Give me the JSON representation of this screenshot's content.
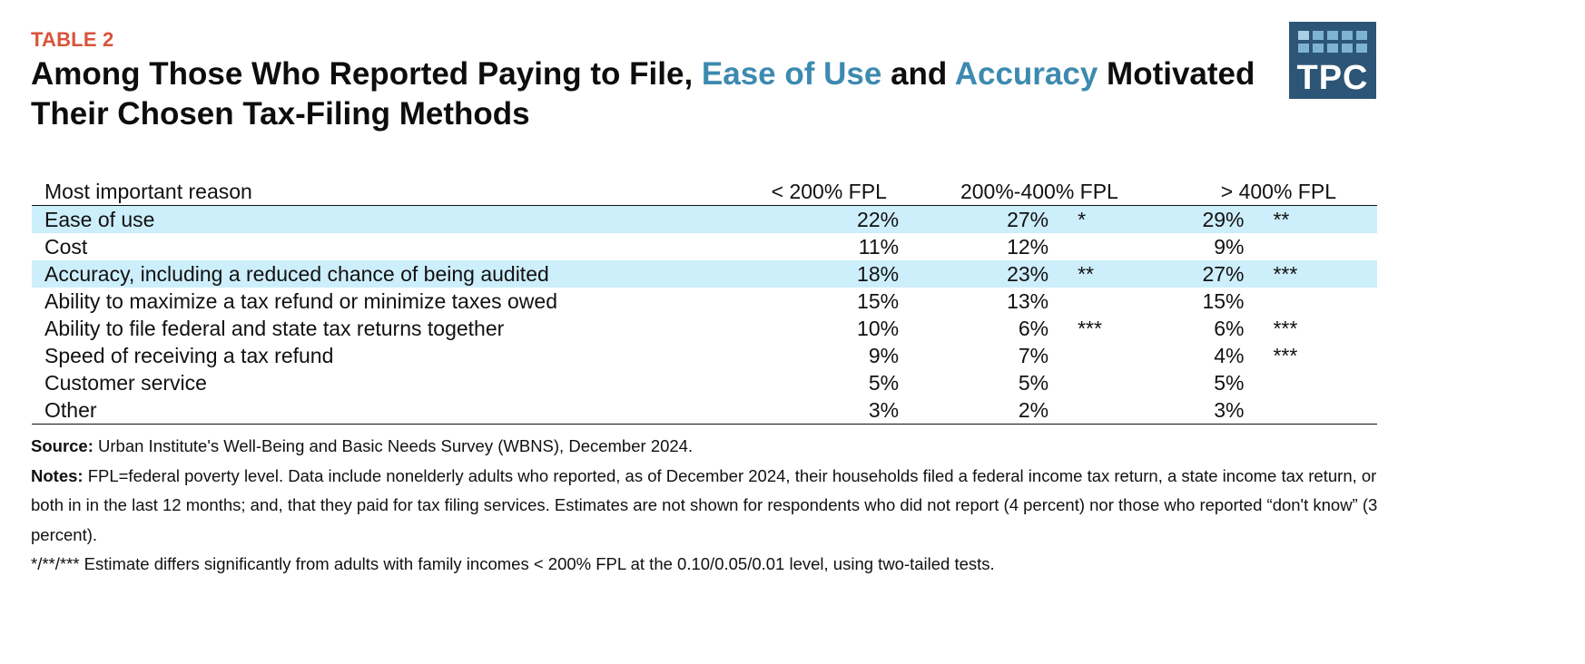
{
  "label": "TABLE 2",
  "title": {
    "part1": "Among Those Who Reported Paying to File, ",
    "hl1": "Ease of Use",
    "part2": " and ",
    "hl2": "Accuracy",
    "part3": " Motivated Their Chosen Tax-Filing Methods",
    "highlight_color": "#3d8ab0"
  },
  "logo": {
    "text": "TPC",
    "bg_color": "#2d5577"
  },
  "table": {
    "headers": [
      "Most important reason",
      "< 200% FPL",
      "200%-400% FPL",
      "> 400% FPL"
    ],
    "highlight_color": "#cdeefb",
    "rows": [
      {
        "reason": "Ease of use",
        "fpl_lt200": "22%",
        "fpl_200_400": "27%",
        "sig_200_400": "*",
        "fpl_gt400": "29%",
        "sig_gt400": "**",
        "highlight": true
      },
      {
        "reason": "Cost",
        "fpl_lt200": "11%",
        "fpl_200_400": "12%",
        "sig_200_400": "",
        "fpl_gt400": "9%",
        "sig_gt400": "",
        "highlight": false
      },
      {
        "reason": "Accuracy, including a reduced chance of being audited",
        "fpl_lt200": "18%",
        "fpl_200_400": "23%",
        "sig_200_400": "**",
        "fpl_gt400": "27%",
        "sig_gt400": "***",
        "highlight": true
      },
      {
        "reason": "Ability to maximize a tax refund or minimize taxes owed",
        "fpl_lt200": "15%",
        "fpl_200_400": "13%",
        "sig_200_400": "",
        "fpl_gt400": "15%",
        "sig_gt400": "",
        "highlight": false
      },
      {
        "reason": "Ability to file federal and state tax returns together",
        "fpl_lt200": "10%",
        "fpl_200_400": "6%",
        "sig_200_400": "***",
        "fpl_gt400": "6%",
        "sig_gt400": "***",
        "highlight": false
      },
      {
        "reason": "Speed of receiving a tax refund",
        "fpl_lt200": "9%",
        "fpl_200_400": "7%",
        "sig_200_400": "",
        "fpl_gt400": "4%",
        "sig_gt400": "***",
        "highlight": false
      },
      {
        "reason": "Customer service",
        "fpl_lt200": "5%",
        "fpl_200_400": "5%",
        "sig_200_400": "",
        "fpl_gt400": "5%",
        "sig_gt400": "",
        "highlight": false
      },
      {
        "reason": "Other",
        "fpl_lt200": "3%",
        "fpl_200_400": "2%",
        "sig_200_400": "",
        "fpl_gt400": "3%",
        "sig_gt400": "",
        "highlight": false
      }
    ]
  },
  "notes": {
    "source_label": "Source:",
    "source_text": " Urban Institute's Well-Being and Basic Needs Survey (WBNS), December 2024.",
    "notes_label": "Notes:",
    "notes_text": " FPL=federal poverty level. Data include nonelderly adults who reported, as of December 2024, their households filed a federal income tax return, a state income tax return, or both in in the last 12 months; and, that they paid for tax filing services. Estimates are not shown for respondents who did not report (4 percent) nor those who reported “don't know” (3 percent).",
    "significance_text": "*/**/*** Estimate differs significantly from adults with family incomes < 200% FPL at the 0.10/0.05/0.01 level, using two-tailed tests."
  }
}
